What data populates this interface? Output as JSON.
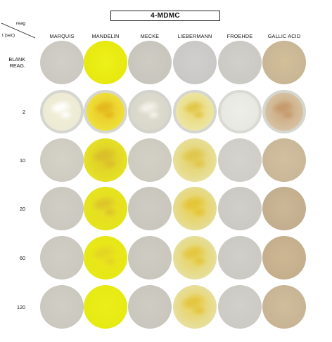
{
  "title": "4-MDMC",
  "corner": {
    "reagent_label": "reag",
    "time_label": "t (sec)"
  },
  "columns": [
    "MARQUIS",
    "MANDELIN",
    "MECKE",
    "LIEBERMANN",
    "FROEHDE",
    "GALLIC ACID"
  ],
  "rows": [
    {
      "label": "BLANK\nREAG.",
      "wells": [
        {
          "base": "#cbc8c1",
          "center": "#d2cfc8"
        },
        {
          "base": "#e6e80e",
          "center": "#eef21a"
        },
        {
          "base": "#c8c5bd",
          "center": "#cfccc4"
        },
        {
          "base": "#c9c8c6",
          "center": "#d0cfcd"
        },
        {
          "base": "#cbc9c4",
          "center": "#d2d0cb"
        },
        {
          "base": "#c7b595",
          "center": "#d3bf98"
        }
      ]
    },
    {
      "label": "2",
      "wells": [
        {
          "base": "#ece9d4",
          "center": "#f4f1da",
          "speck": "#ffffff",
          "ring": "#d6d6d0"
        },
        {
          "base": "#efe13a",
          "center": "#e9c523",
          "speck": "#e4b71c",
          "ring": "#d7d7d0"
        },
        {
          "base": "#d9d7cb",
          "center": "#e0ddd0",
          "speck": "#f4f2ea",
          "ring": "#d3d3cd"
        },
        {
          "base": "#ece6a6",
          "center": "#e8d66c",
          "speck": "#e2c645",
          "ring": "#d6d6d0"
        },
        {
          "base": "#e8e8e2",
          "center": "#eeeee8",
          "ring": "#dadad4"
        },
        {
          "base": "#d7c2a2",
          "center": "#c9a47a",
          "speck": "#c59a6b",
          "ring": "#d6d6d0"
        }
      ]
    },
    {
      "label": "10",
      "wells": [
        {
          "base": "#cecbc1",
          "center": "#d5d2c8"
        },
        {
          "base": "#e5e227",
          "center": "#dfc928",
          "speck": "#d9be2a"
        },
        {
          "base": "#cdcbbf",
          "center": "#d3d1c5"
        },
        {
          "base": "#e8e09d",
          "center": "#e2cf5d",
          "speck": "#dfc74a"
        },
        {
          "base": "#cfcdc7",
          "center": "#d5d3cd"
        },
        {
          "base": "#c9b798",
          "center": "#d1bf9f"
        }
      ]
    },
    {
      "label": "20",
      "wells": [
        {
          "base": "#cbc8bf",
          "center": "#d1cec5"
        },
        {
          "base": "#e5e41c",
          "center": "#e7dc27",
          "speck": "#ddc42a"
        },
        {
          "base": "#c9c6bd",
          "center": "#cfccc3"
        },
        {
          "base": "#e6dc96",
          "center": "#e8cf48",
          "speck": "#e4c434"
        },
        {
          "base": "#cbc9c3",
          "center": "#d1cfc9"
        },
        {
          "base": "#c2ae8e",
          "center": "#ccb795"
        }
      ]
    },
    {
      "label": "60",
      "wells": [
        {
          "base": "#cbc8bf",
          "center": "#d1cec5"
        },
        {
          "base": "#e6e816",
          "center": "#ece41e",
          "speck": "#e3d523"
        },
        {
          "base": "#c9c6bd",
          "center": "#cfccc3"
        },
        {
          "base": "#e6df9f",
          "center": "#e7d256",
          "speck": "#e3c63d"
        },
        {
          "base": "#cbc9c3",
          "center": "#d1cfc9"
        },
        {
          "base": "#c4ae8c",
          "center": "#cdb793"
        }
      ]
    },
    {
      "label": "120",
      "wells": [
        {
          "base": "#cbc8bf",
          "center": "#d1cec5"
        },
        {
          "base": "#e6ea12",
          "center": "#ecee1a"
        },
        {
          "base": "#c9c6bd",
          "center": "#cfccc3"
        },
        {
          "base": "#e7dfa0",
          "center": "#e8d155",
          "speck": "#e3c43c"
        },
        {
          "base": "#cccac4",
          "center": "#d2d0ca"
        },
        {
          "base": "#c7b494",
          "center": "#d0bd9b"
        }
      ]
    }
  ]
}
